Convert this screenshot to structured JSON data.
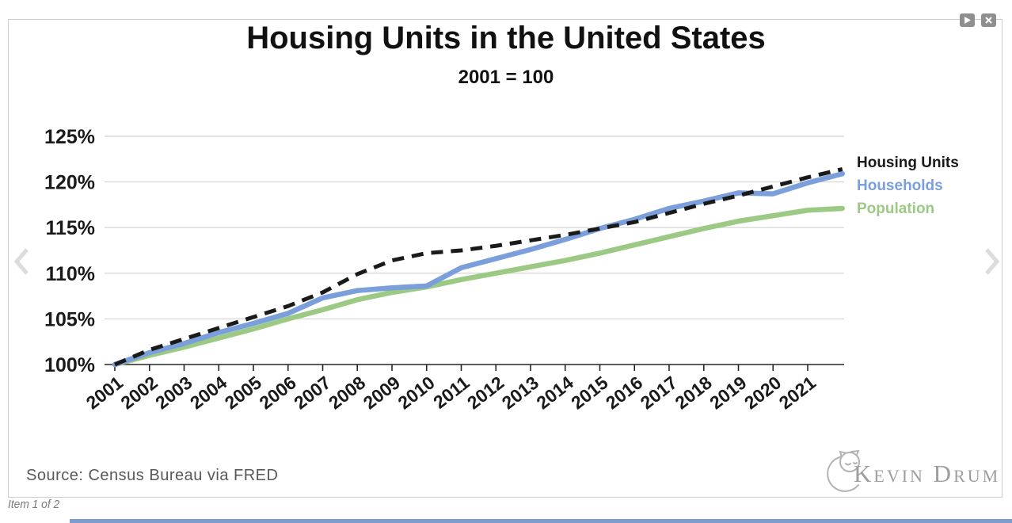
{
  "carousel": {
    "item_label": "Item 1 of 2"
  },
  "branding": {
    "logo_text": "Kevin Drum"
  },
  "chart_data": {
    "type": "line",
    "title": "Housing Units in the United States",
    "subtitle": "2001 = 100",
    "source": "Source: Census Bureau via FRED",
    "grid": true,
    "legend_position": "right",
    "ylim": [
      100,
      127
    ],
    "y_ticks": [
      "100%",
      "105%",
      "110%",
      "115%",
      "120%",
      "125%"
    ],
    "x_tick_labels": [
      "2001",
      "2002",
      "2003",
      "2004",
      "2005",
      "2006",
      "2007",
      "2008",
      "2009",
      "2010",
      "2011",
      "2012",
      "2013",
      "2014",
      "2015",
      "2016",
      "2017",
      "2018",
      "2019",
      "2020",
      "2021"
    ],
    "x": [
      2001,
      2002,
      2003,
      2004,
      2005,
      2006,
      2007,
      2008,
      2009,
      2010,
      2011,
      2012,
      2013,
      2014,
      2015,
      2016,
      2017,
      2018,
      2019,
      2020,
      2021,
      2022
    ],
    "series": [
      {
        "name": "Housing Units",
        "color": "#1a1a1a",
        "style": "dashed",
        "values": [
          100,
          101.6,
          102.8,
          104.0,
          105.2,
          106.4,
          107.9,
          109.9,
          111.4,
          112.2,
          112.5,
          113.0,
          113.6,
          114.2,
          114.9,
          115.6,
          116.6,
          117.6,
          118.5,
          119.5,
          120.5,
          121.4
        ]
      },
      {
        "name": "Households",
        "color": "#7b9fda",
        "style": "solid",
        "values": [
          100,
          101.3,
          102.3,
          103.5,
          104.5,
          105.6,
          107.3,
          108.1,
          108.4,
          108.6,
          110.6,
          111.6,
          112.6,
          113.7,
          114.9,
          115.9,
          117.1,
          117.9,
          118.8,
          118.7,
          119.9,
          120.9
        ]
      },
      {
        "name": "Population",
        "color": "#9cca84",
        "style": "solid",
        "values": [
          100,
          101.0,
          101.9,
          102.9,
          103.9,
          105.0,
          106.0,
          107.1,
          107.9,
          108.5,
          109.3,
          110.0,
          110.7,
          111.4,
          112.2,
          113.1,
          114.0,
          114.9,
          115.7,
          116.3,
          116.9,
          117.1
        ]
      }
    ]
  }
}
